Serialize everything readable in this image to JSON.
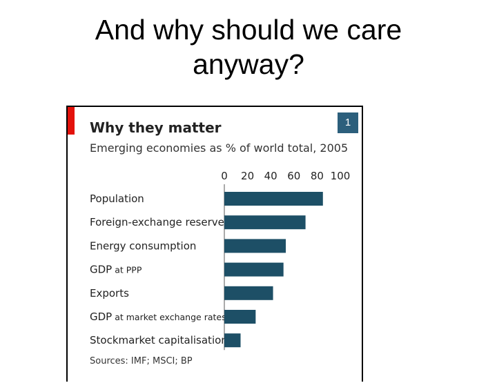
{
  "slide": {
    "title_line1": "And why should we care",
    "title_line2": "anyway?"
  },
  "chart_data": {
    "type": "bar",
    "orientation": "horizontal",
    "number": "1",
    "title": "Why they matter",
    "subtitle": "Emerging economies as % of world total, 2005",
    "source": "Sources: IMF; MSCI; BP",
    "categories": [
      {
        "main": "Population",
        "suffix": ""
      },
      {
        "main": "Foreign-exchange reserves",
        "suffix": ""
      },
      {
        "main": "Energy consumption",
        "suffix": ""
      },
      {
        "main": "GDP",
        "suffix": " at PPP"
      },
      {
        "main": "Exports",
        "suffix": ""
      },
      {
        "main": "GDP",
        "suffix": " at market exchange rates"
      },
      {
        "main": "Stockmarket capitalisation",
        "suffix": ""
      }
    ],
    "values": [
      85,
      70,
      53,
      51,
      42,
      27,
      14
    ],
    "xlim": [
      0,
      100
    ],
    "xticks": [
      0,
      20,
      40,
      60,
      80,
      100
    ],
    "xaxis_position": "top",
    "grid": false,
    "legend": "none",
    "colors": {
      "bar": "#1d4f66",
      "accent_red": "#e3120b",
      "badge": "#2c5f7c"
    }
  }
}
